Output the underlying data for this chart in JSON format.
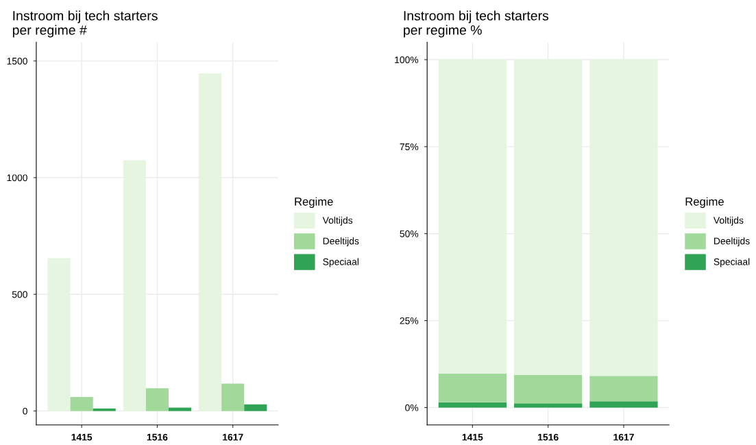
{
  "chart_data": [
    {
      "type": "bar",
      "title": "Instroom bij tech starters\nper regime #",
      "categories": [
        "1415",
        "1516",
        "1617"
      ],
      "legend_title": "Regime",
      "legend": "right",
      "grid": true,
      "ylim": [
        -60,
        1580
      ],
      "yticks": [
        0,
        500,
        1000,
        1500
      ],
      "series": [
        {
          "name": "Voltijds",
          "color": "#e5f5e0",
          "values": [
            655,
            1074,
            1447
          ]
        },
        {
          "name": "Deeltijds",
          "color": "#a1d99b",
          "values": [
            60,
            97,
            117
          ]
        },
        {
          "name": "Speciaal",
          "color": "#31a354",
          "values": [
            11,
            14,
            28
          ]
        }
      ]
    },
    {
      "type": "bar",
      "stacked": true,
      "title": "Instroom bij tech starters\nper regime %",
      "categories": [
        "1415",
        "1516",
        "1617"
      ],
      "legend_title": "Regime",
      "legend": "right",
      "grid": true,
      "ylim": [
        -5,
        105
      ],
      "yticks": [
        {
          "value": 0,
          "label": "0%"
        },
        {
          "value": 25,
          "label": "25%"
        },
        {
          "value": 50,
          "label": "50%"
        },
        {
          "value": 75,
          "label": "75%"
        },
        {
          "value": 100,
          "label": "100%"
        }
      ],
      "series": [
        {
          "name": "Speciaal",
          "color": "#31a354",
          "values": [
            1.5,
            1.2,
            1.8
          ]
        },
        {
          "name": "Deeltijds",
          "color": "#a1d99b",
          "values": [
            8.3,
            8.2,
            7.3
          ]
        },
        {
          "name": "Voltijds",
          "color": "#e5f5e0",
          "values": [
            90.2,
            90.6,
            90.9
          ]
        }
      ]
    }
  ]
}
